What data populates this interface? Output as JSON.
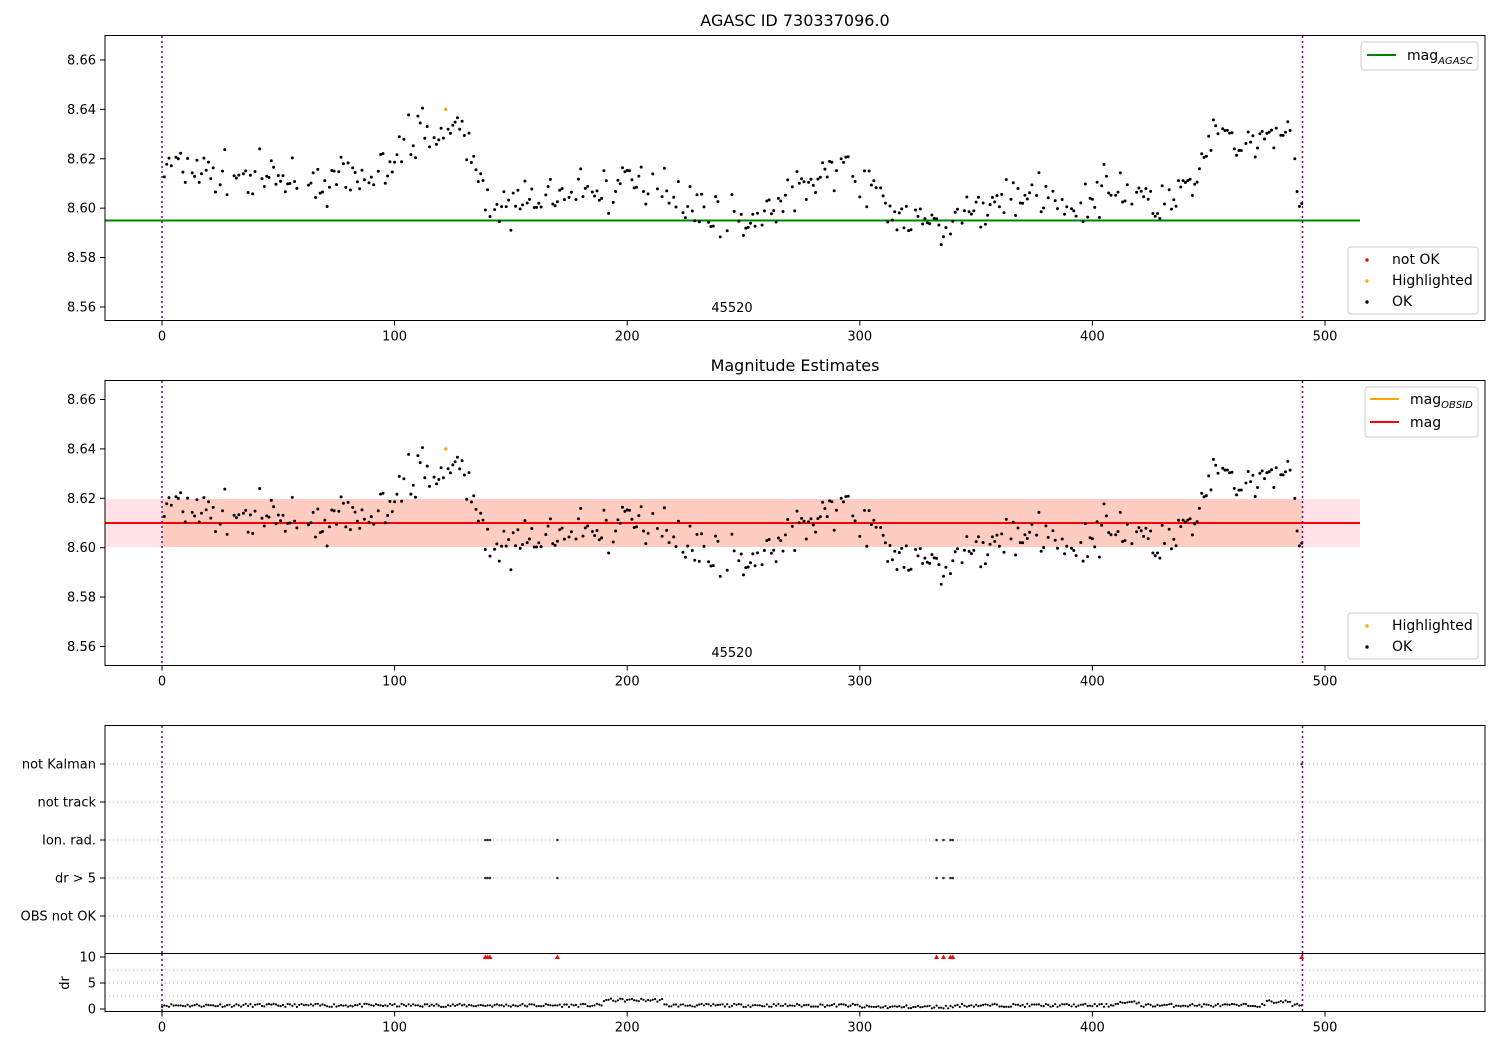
{
  "chart_data": [
    {
      "type": "scatter",
      "title": "AGASC ID 730337096.0",
      "xlim": [
        -25,
        565
      ],
      "ylim": [
        8.545,
        8.67
      ],
      "x_ticks": [
        0,
        100,
        200,
        300,
        400,
        500
      ],
      "x_tick_labels": [
        "0",
        "100",
        "200",
        "300",
        "400",
        "500"
      ],
      "y_ticks": [
        8.56,
        8.58,
        8.6,
        8.62,
        8.64,
        8.66
      ],
      "y_tick_labels": [
        "8.56",
        "8.58",
        "8.60",
        "8.62",
        "8.64",
        "8.66"
      ],
      "reference_line": {
        "y": 8.595,
        "x_range": [
          -25,
          515
        ],
        "color": "#008000"
      },
      "vertical_lines": [
        0,
        490
      ],
      "annotation": {
        "text": "45520",
        "x": 245
      },
      "legend_top": {
        "placement": "top-right",
        "label": "mag",
        "sub": "AGASC",
        "color": "#008000"
      },
      "legend_bottom": {
        "placement": "lower-right",
        "entries": [
          {
            "label": "not OK",
            "color": "#ff0000"
          },
          {
            "label": "Highlighted",
            "color": "#ffa500"
          },
          {
            "label": "OK",
            "color": "#000000"
          }
        ]
      },
      "highlighted_point": {
        "x": 122,
        "y": 8.64
      }
    },
    {
      "type": "scatter",
      "title": "Magnitude Estimates",
      "xlim": [
        -25,
        565
      ],
      "ylim": [
        8.545,
        8.67
      ],
      "x_ticks": [
        0,
        100,
        200,
        300,
        400,
        500
      ],
      "x_tick_labels": [
        "0",
        "100",
        "200",
        "300",
        "400",
        "500"
      ],
      "y_ticks": [
        8.56,
        8.58,
        8.6,
        8.62,
        8.64,
        8.66
      ],
      "y_tick_labels": [
        "8.56",
        "8.58",
        "8.60",
        "8.62",
        "8.64",
        "8.66"
      ],
      "mean_line": {
        "y": 8.61,
        "x_range": [
          -25,
          515
        ],
        "color": "#ff0000"
      },
      "bands": [
        {
          "y_range": [
            8.599,
            8.622
          ],
          "x_range": [
            -25,
            515
          ],
          "color": "#ffc0cb"
        },
        {
          "y_range": [
            8.599,
            8.622
          ],
          "x_range": [
            0,
            490
          ],
          "color": "#ffa07a"
        }
      ],
      "vertical_lines": [
        0,
        490
      ],
      "annotation": {
        "text": "45520",
        "x": 245
      },
      "legend_top": {
        "placement": "top-right",
        "entries": [
          {
            "label": "mag",
            "sub": "OBSID",
            "color": "#ffa500"
          },
          {
            "label": "mag",
            "sub": "",
            "color": "#ff0000"
          }
        ]
      },
      "legend_bottom": {
        "placement": "lower-right",
        "entries": [
          {
            "label": "Highlighted",
            "color": "#ffa500"
          },
          {
            "label": "OK",
            "color": "#000000"
          }
        ]
      },
      "highlighted_point": {
        "x": 122,
        "y": 8.64
      }
    },
    {
      "type": "scatter",
      "title": "",
      "xlim": [
        -25,
        565
      ],
      "categories": [
        "not Kalman",
        "not track",
        "Ion. rad.",
        "dr > 5",
        "OBS not OK"
      ],
      "vertical_lines": [
        0,
        490
      ],
      "flags": [
        {
          "category": "not Kalman",
          "x": [
            490
          ]
        },
        {
          "category": "not track",
          "x": []
        },
        {
          "category": "Ion. rad.",
          "x": [
            139,
            140,
            141,
            170,
            333,
            336,
            339,
            340
          ]
        },
        {
          "category": "dr > 5",
          "x": [
            139,
            140,
            141,
            170,
            333,
            336,
            339,
            340
          ]
        },
        {
          "category": "OBS not OK",
          "x": []
        }
      ]
    },
    {
      "type": "scatter",
      "title": "",
      "ylabel": "dr",
      "xlim": [
        -25,
        565
      ],
      "ylim": [
        -0.5,
        10.5
      ],
      "x_ticks": [
        0,
        100,
        200,
        300,
        400,
        500
      ],
      "x_tick_labels": [
        "0",
        "100",
        "200",
        "300",
        "400",
        "500"
      ],
      "y_ticks": [
        0,
        5,
        10
      ],
      "y_tick_labels": [
        "0",
        "5",
        "10"
      ],
      "vertical_lines": [
        0,
        490
      ],
      "clipped_markers": {
        "y": 10,
        "x": [
          139,
          140,
          141,
          170,
          333,
          336,
          339,
          340,
          490
        ],
        "color": "#ff0000"
      }
    }
  ]
}
